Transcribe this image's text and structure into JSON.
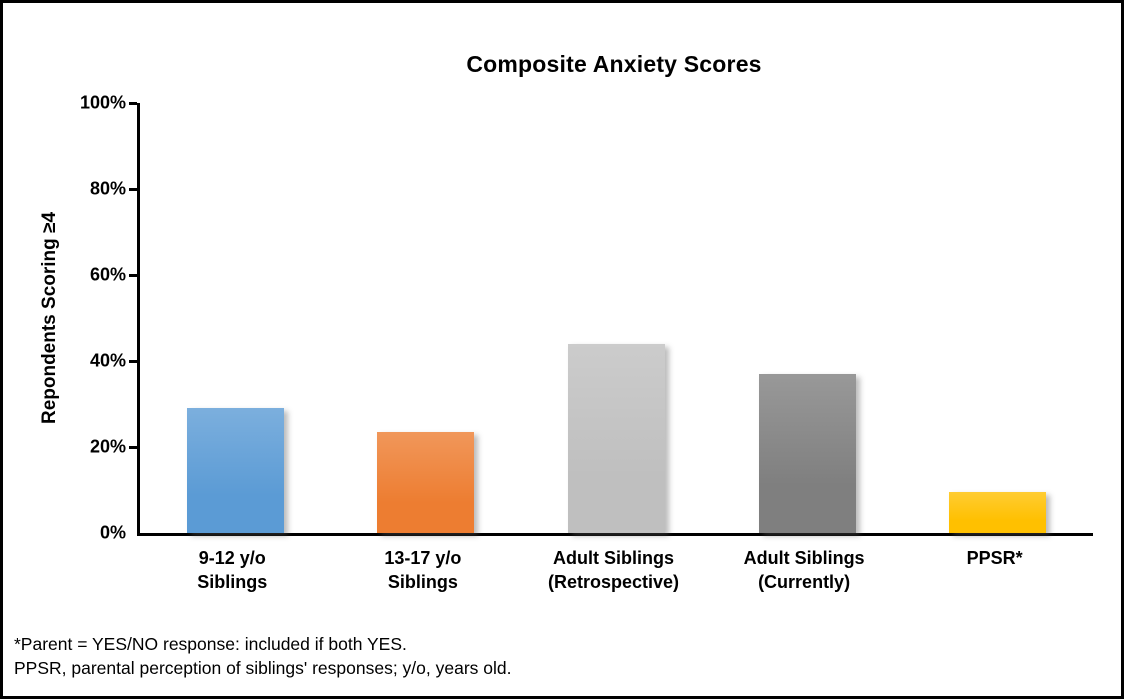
{
  "figure": {
    "title": "Composite Anxiety Scores",
    "footnotes": {
      "line1": "*Parent = YES/NO response: included if both YES.",
      "line2": "PPSR, parental perception of siblings' responses; y/o, years old."
    }
  },
  "chart_data": {
    "type": "bar",
    "title": "Composite Anxiety Scores",
    "xlabel": "",
    "ylabel": "Repondents Scoring ≥4",
    "categories": [
      "9-12 y/o\nSiblings",
      "13-17 y/o\nSiblings",
      "Adult Siblings\n(Retrospective)",
      "Adult Siblings\n(Currently)",
      "PPSR*"
    ],
    "values": [
      29,
      23.5,
      44,
      37,
      9.5
    ],
    "unit": "%",
    "ylim": [
      0,
      100
    ],
    "yticks": [
      "0%",
      "20%",
      "40%",
      "60%",
      "80%",
      "100%"
    ],
    "grid": false,
    "legend_position": "none",
    "bar_colors": [
      "#5B9BD5",
      "#ED7D31",
      "#BFBFBF",
      "#7F7F7F",
      "#FFC000"
    ],
    "annotations": [
      "*Parent = YES/NO response: included if both YES.",
      "PPSR, parental perception of siblings' responses; y/o, years old."
    ]
  }
}
